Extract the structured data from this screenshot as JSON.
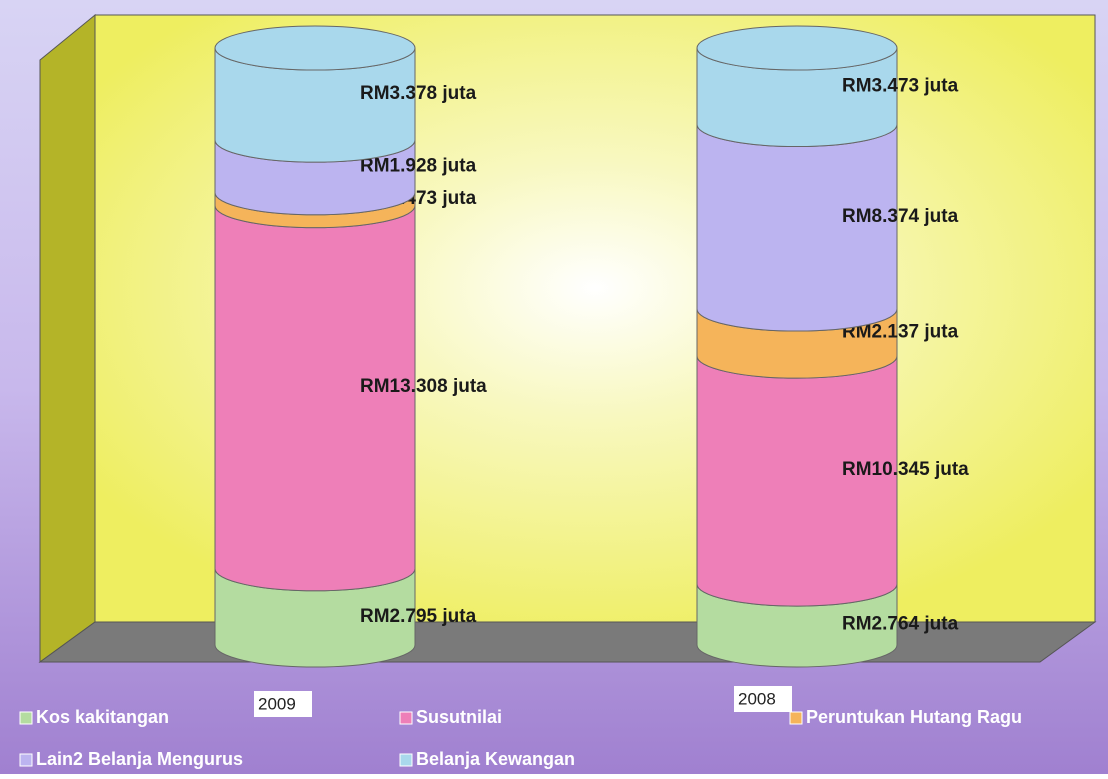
{
  "chart_data": {
    "type": "bar",
    "stacking": "percent",
    "categories": [
      "2009",
      "2008"
    ],
    "series": [
      {
        "name": "Kos kakitangan",
        "color": "#b4dca0",
        "values": [
          2.795,
          2.764
        ],
        "value_labels": [
          "RM2.795 juta",
          "RM2.764 juta"
        ]
      },
      {
        "name": "Susutnilai",
        "color": "#ee7fb8",
        "values": [
          13.308,
          10.345
        ],
        "value_labels": [
          "RM13.308 juta",
          "RM10.345 juta"
        ]
      },
      {
        "name": "Peruntukan Hutang Ragu",
        "color": "#f5b45a",
        "values": [
          0.473,
          2.137
        ],
        "value_labels": [
          "RM0.473 juta",
          "RM2.137 juta"
        ]
      },
      {
        "name": "Lain2 Belanja Mengurus",
        "color": "#bcb4f0",
        "values": [
          1.928,
          8.374
        ],
        "value_labels": [
          "RM1.928 juta",
          "RM8.374 juta"
        ]
      },
      {
        "name": "Belanja Kewangan",
        "color": "#a9d8ec",
        "values": [
          3.378,
          3.473
        ],
        "value_labels": [
          "RM3.378 juta",
          "RM3.473 juta"
        ]
      }
    ]
  }
}
